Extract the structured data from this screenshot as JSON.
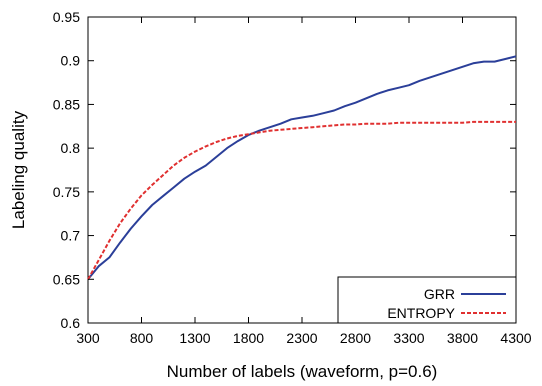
{
  "chart_data": {
    "type": "line",
    "title": "",
    "xlabel": "Number of labels (waveform, p=0.6)",
    "ylabel": "Labeling quality",
    "xlim": [
      300,
      4300
    ],
    "ylim": [
      0.6,
      0.95
    ],
    "xticks": [
      300,
      800,
      1300,
      1800,
      2300,
      2800,
      3300,
      3800,
      4300
    ],
    "yticks": [
      0.6,
      0.65,
      0.7,
      0.75,
      0.8,
      0.85,
      0.9,
      0.95
    ],
    "xtick_labels": [
      "300",
      "800",
      "1300",
      "1800",
      "2300",
      "2800",
      "3300",
      "3800",
      "4300"
    ],
    "ytick_labels": [
      "0.6",
      "0.65",
      "0.7",
      "0.75",
      "0.8",
      "0.85",
      "0.9",
      "0.95"
    ],
    "grid": false,
    "legend": "bottom-right",
    "series": [
      {
        "name": "GRR",
        "color": "#2b3f99",
        "style": "solid",
        "x": [
          300,
          400,
          500,
          600,
          700,
          800,
          900,
          1000,
          1100,
          1200,
          1300,
          1400,
          1500,
          1600,
          1700,
          1800,
          1900,
          2000,
          2100,
          2200,
          2300,
          2400,
          2500,
          2600,
          2700,
          2800,
          2900,
          3000,
          3100,
          3200,
          3300,
          3400,
          3500,
          3600,
          3700,
          3800,
          3900,
          4000,
          4100,
          4200,
          4300
        ],
        "values": [
          0.65,
          0.665,
          0.675,
          0.692,
          0.708,
          0.722,
          0.735,
          0.745,
          0.755,
          0.765,
          0.773,
          0.78,
          0.79,
          0.8,
          0.808,
          0.815,
          0.82,
          0.824,
          0.828,
          0.833,
          0.835,
          0.837,
          0.84,
          0.843,
          0.848,
          0.852,
          0.857,
          0.862,
          0.866,
          0.869,
          0.872,
          0.877,
          0.881,
          0.885,
          0.889,
          0.893,
          0.897,
          0.899,
          0.899,
          0.902,
          0.905
        ]
      },
      {
        "name": "ENTROPY",
        "color": "#e03030",
        "style": "dashed",
        "x": [
          300,
          400,
          500,
          600,
          700,
          800,
          900,
          1000,
          1100,
          1200,
          1300,
          1400,
          1500,
          1600,
          1700,
          1800,
          1900,
          2000,
          2100,
          2200,
          2300,
          2400,
          2500,
          2600,
          2700,
          2800,
          2900,
          3000,
          3100,
          3200,
          3300,
          3400,
          3500,
          3600,
          3700,
          3800,
          3900,
          4000,
          4100,
          4200,
          4300
        ],
        "values": [
          0.65,
          0.672,
          0.694,
          0.714,
          0.731,
          0.746,
          0.758,
          0.769,
          0.78,
          0.789,
          0.796,
          0.802,
          0.807,
          0.811,
          0.814,
          0.816,
          0.818,
          0.82,
          0.821,
          0.822,
          0.823,
          0.824,
          0.825,
          0.826,
          0.827,
          0.827,
          0.828,
          0.828,
          0.828,
          0.829,
          0.829,
          0.829,
          0.829,
          0.829,
          0.829,
          0.829,
          0.83,
          0.83,
          0.83,
          0.83,
          0.83
        ]
      }
    ]
  }
}
